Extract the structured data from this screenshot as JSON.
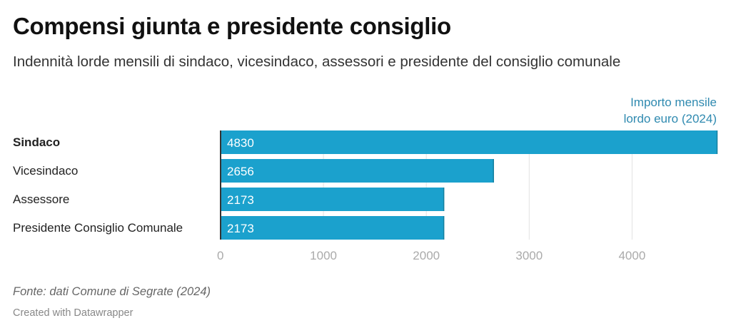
{
  "header": {
    "title": "Compensi giunta e presidente consiglio",
    "subtitle": "Indennità lorde mensili di sindaco, vicesindaco, assessori e presidente del consiglio comunale"
  },
  "chart_data": {
    "type": "bar",
    "orientation": "horizontal",
    "series_label": "Importo mensile lordo euro (2024)",
    "series_label_lines": [
      "Importo mensile",
      "lordo euro (2024)"
    ],
    "categories": [
      "Sindaco",
      "Vicesindaco",
      "Assessore",
      "Presidente Consiglio Comunale"
    ],
    "bold_categories": [
      "Sindaco"
    ],
    "values": [
      4830,
      2656,
      2173,
      2173
    ],
    "value_labels": [
      "4830",
      "2656",
      "2173",
      "2173"
    ],
    "xlim": [
      0,
      4830
    ],
    "xticks": [
      0,
      1000,
      2000,
      3000,
      4000
    ],
    "xtick_labels": [
      "0",
      "1000",
      "2000",
      "3000",
      "4000"
    ],
    "grid": true,
    "bar_color": "#1ba1cd",
    "label_color": "#2f8ab0"
  },
  "footer": {
    "source": "Fonte: dati Comune di Segrate (2024)",
    "credit": "Created with Datawrapper"
  }
}
